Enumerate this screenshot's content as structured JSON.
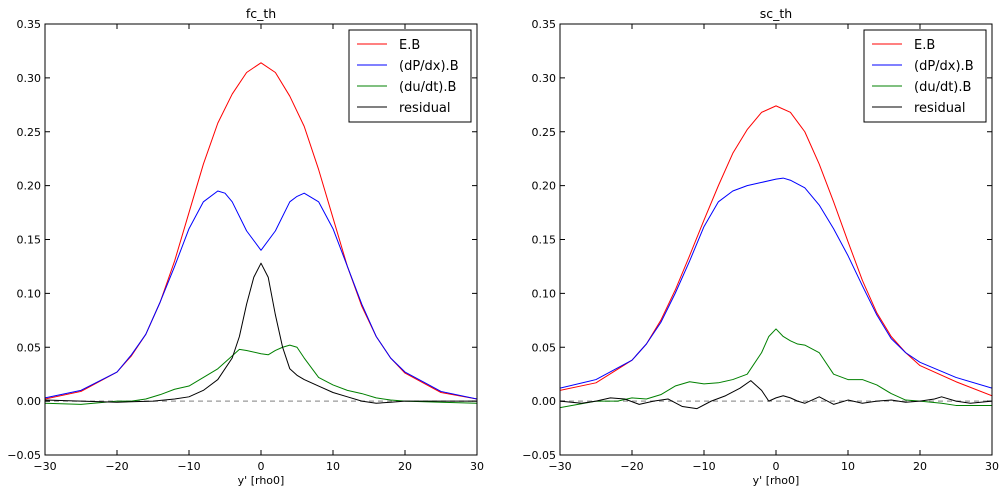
{
  "chart_data": [
    {
      "type": "line",
      "title": "fc_th",
      "xlabel": "y' [rho0]",
      "ylabel": "",
      "xlim": [
        -30,
        30
      ],
      "ylim": [
        -0.05,
        0.35
      ],
      "xticks": [
        "−30",
        "−20",
        "−10",
        "0",
        "10",
        "20",
        "30"
      ],
      "xtick_values": [
        -30,
        -20,
        -10,
        0,
        10,
        20,
        30
      ],
      "yticks": [
        "−0.05",
        "0.00",
        "0.05",
        "0.10",
        "0.15",
        "0.20",
        "0.25",
        "0.30",
        "0.35"
      ],
      "ytick_values": [
        -0.05,
        0.0,
        0.05,
        0.1,
        0.15,
        0.2,
        0.25,
        0.3,
        0.35
      ],
      "grid": false,
      "legend_position": "top-right",
      "reference_line": {
        "y": 0.0,
        "style": "dashed",
        "color": "#999999"
      },
      "series": [
        {
          "name": "E.B",
          "color": "#ff0000",
          "x": [
            -30,
            -25,
            -20,
            -18,
            -16,
            -14,
            -12,
            -10,
            -8,
            -6,
            -4,
            -2,
            0,
            2,
            4,
            6,
            8,
            10,
            12,
            14,
            16,
            18,
            20,
            25,
            30
          ],
          "y": [
            0.002,
            0.009,
            0.027,
            0.042,
            0.062,
            0.092,
            0.13,
            0.175,
            0.22,
            0.258,
            0.285,
            0.305,
            0.314,
            0.305,
            0.283,
            0.255,
            0.215,
            0.17,
            0.125,
            0.088,
            0.06,
            0.04,
            0.026,
            0.008,
            0.002
          ]
        },
        {
          "name": "(dP/dx).B",
          "color": "#0000ff",
          "x": [
            -30,
            -25,
            -20,
            -18,
            -16,
            -14,
            -12,
            -10,
            -8,
            -6,
            -5,
            -4,
            -2,
            0,
            2,
            4,
            5,
            6,
            8,
            10,
            12,
            14,
            16,
            18,
            20,
            25,
            30
          ],
          "y": [
            0.003,
            0.01,
            0.027,
            0.043,
            0.062,
            0.092,
            0.125,
            0.16,
            0.185,
            0.195,
            0.193,
            0.185,
            0.158,
            0.14,
            0.158,
            0.185,
            0.19,
            0.193,
            0.185,
            0.16,
            0.125,
            0.09,
            0.06,
            0.04,
            0.027,
            0.009,
            0.002
          ]
        },
        {
          "name": "(du/dt).B",
          "color": "#008000",
          "x": [
            -30,
            -25,
            -20,
            -18,
            -16,
            -14,
            -12,
            -10,
            -8,
            -6,
            -4,
            -3,
            -2,
            0,
            1,
            2,
            3,
            4,
            5,
            6,
            8,
            10,
            12,
            14,
            16,
            18,
            20,
            25,
            30
          ],
          "y": [
            -0.002,
            -0.003,
            0.0,
            0.0,
            0.002,
            0.006,
            0.011,
            0.014,
            0.022,
            0.03,
            0.042,
            0.048,
            0.047,
            0.044,
            0.043,
            0.047,
            0.05,
            0.052,
            0.05,
            0.04,
            0.022,
            0.015,
            0.01,
            0.007,
            0.003,
            0.001,
            0.0,
            -0.001,
            -0.002
          ]
        },
        {
          "name": "residual",
          "color": "#000000",
          "x": [
            -30,
            -25,
            -20,
            -15,
            -12,
            -10,
            -8,
            -6,
            -4,
            -3,
            -2,
            -1,
            0,
            1,
            2,
            3,
            4,
            5,
            6,
            8,
            10,
            12,
            14,
            16,
            18,
            20,
            25,
            30
          ],
          "y": [
            0.001,
            0.0,
            -0.001,
            0.0,
            0.002,
            0.004,
            0.01,
            0.02,
            0.04,
            0.06,
            0.09,
            0.115,
            0.128,
            0.115,
            0.08,
            0.05,
            0.03,
            0.024,
            0.02,
            0.014,
            0.008,
            0.004,
            0.0,
            -0.002,
            -0.001,
            0.0,
            0.0,
            0.0
          ]
        }
      ]
    },
    {
      "type": "line",
      "title": "sc_th",
      "xlabel": "y' [rho0]",
      "ylabel": "",
      "xlim": [
        -30,
        30
      ],
      "ylim": [
        -0.05,
        0.35
      ],
      "xticks": [
        "−30",
        "−20",
        "−10",
        "0",
        "10",
        "20",
        "30"
      ],
      "xtick_values": [
        -30,
        -20,
        -10,
        0,
        10,
        20,
        30
      ],
      "yticks": [
        "−0.05",
        "0.00",
        "0.05",
        "0.10",
        "0.15",
        "0.20",
        "0.25",
        "0.30",
        "0.35"
      ],
      "ytick_values": [
        -0.05,
        0.0,
        0.05,
        0.1,
        0.15,
        0.2,
        0.25,
        0.3,
        0.35
      ],
      "grid": false,
      "legend_position": "top-right",
      "reference_line": {
        "y": 0.0,
        "style": "dashed",
        "color": "#999999"
      },
      "series": [
        {
          "name": "E.B",
          "color": "#ff0000",
          "x": [
            -30,
            -25,
            -20,
            -18,
            -16,
            -14,
            -12,
            -10,
            -8,
            -6,
            -4,
            -2,
            0,
            2,
            4,
            6,
            8,
            10,
            12,
            14,
            16,
            18,
            20,
            25,
            30
          ],
          "y": [
            0.01,
            0.017,
            0.038,
            0.053,
            0.075,
            0.103,
            0.135,
            0.168,
            0.2,
            0.23,
            0.252,
            0.268,
            0.274,
            0.268,
            0.25,
            0.22,
            0.185,
            0.148,
            0.112,
            0.082,
            0.06,
            0.045,
            0.033,
            0.018,
            0.005
          ]
        },
        {
          "name": "(dP/dx).B",
          "color": "#0000ff",
          "x": [
            -30,
            -25,
            -20,
            -18,
            -16,
            -14,
            -12,
            -10,
            -8,
            -6,
            -4,
            -2,
            0,
            1,
            2,
            4,
            6,
            8,
            10,
            12,
            14,
            16,
            18,
            20,
            25,
            30
          ],
          "y": [
            0.012,
            0.02,
            0.038,
            0.053,
            0.073,
            0.1,
            0.13,
            0.162,
            0.185,
            0.195,
            0.2,
            0.203,
            0.206,
            0.207,
            0.205,
            0.198,
            0.182,
            0.16,
            0.135,
            0.107,
            0.08,
            0.058,
            0.045,
            0.036,
            0.022,
            0.012
          ]
        },
        {
          "name": "(du/dt).B",
          "color": "#008000",
          "x": [
            -30,
            -25,
            -22,
            -20,
            -18,
            -16,
            -14,
            -12,
            -10,
            -8,
            -6,
            -4,
            -2,
            -1,
            0,
            1,
            2,
            3,
            4,
            6,
            8,
            10,
            12,
            14,
            16,
            18,
            20,
            23,
            25,
            30
          ],
          "y": [
            -0.006,
            0.0,
            0.0,
            0.003,
            0.002,
            0.006,
            0.014,
            0.018,
            0.016,
            0.017,
            0.02,
            0.025,
            0.045,
            0.06,
            0.067,
            0.06,
            0.056,
            0.053,
            0.052,
            0.045,
            0.025,
            0.02,
            0.02,
            0.015,
            0.007,
            0.001,
            0.0,
            -0.002,
            -0.004,
            -0.004
          ]
        },
        {
          "name": "residual",
          "color": "#000000",
          "x": [
            -30,
            -27,
            -25,
            -23,
            -21,
            -19,
            -17,
            -15,
            -13,
            -11,
            -9,
            -7,
            -5,
            -3.5,
            -2,
            -1,
            0,
            1,
            2,
            3,
            4,
            6,
            8,
            10,
            12,
            14,
            16,
            18,
            20,
            22,
            23,
            25,
            27,
            30
          ],
          "y": [
            0.0,
            -0.002,
            0.0,
            0.003,
            0.002,
            -0.003,
            0.0,
            0.002,
            -0.005,
            -0.007,
            0.0,
            0.005,
            0.012,
            0.019,
            0.01,
            0.0,
            0.003,
            0.005,
            0.003,
            0.0,
            -0.002,
            0.004,
            -0.003,
            0.001,
            -0.002,
            0.0,
            0.001,
            -0.001,
            0.0,
            0.002,
            0.004,
            0.0,
            -0.002,
            0.0
          ]
        }
      ]
    }
  ]
}
